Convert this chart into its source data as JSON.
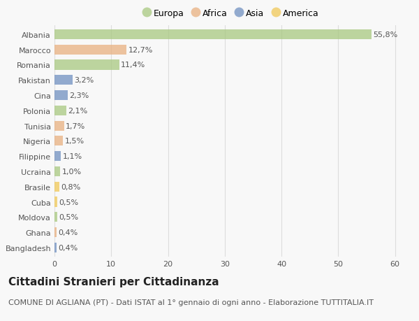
{
  "countries": [
    "Albania",
    "Marocco",
    "Romania",
    "Pakistan",
    "Cina",
    "Polonia",
    "Tunisia",
    "Nigeria",
    "Filippine",
    "Ucraina",
    "Brasile",
    "Cuba",
    "Moldova",
    "Ghana",
    "Bangladesh"
  ],
  "values": [
    55.8,
    12.7,
    11.4,
    3.2,
    2.3,
    2.1,
    1.7,
    1.5,
    1.1,
    1.0,
    0.8,
    0.5,
    0.5,
    0.4,
    0.4
  ],
  "labels": [
    "55,8%",
    "12,7%",
    "11,4%",
    "3,2%",
    "2,3%",
    "2,1%",
    "1,7%",
    "1,5%",
    "1,1%",
    "1,0%",
    "0,8%",
    "0,5%",
    "0,5%",
    "0,4%",
    "0,4%"
  ],
  "continents": [
    "Europa",
    "Africa",
    "Europa",
    "Asia",
    "Asia",
    "Europa",
    "Africa",
    "Africa",
    "Asia",
    "Europa",
    "America",
    "America",
    "Europa",
    "Africa",
    "Asia"
  ],
  "continent_colors": {
    "Europa": "#a8c880",
    "Africa": "#e8b080",
    "Asia": "#7090c0",
    "America": "#f0c858"
  },
  "bar_alpha": 0.75,
  "legend_items": [
    "Europa",
    "Africa",
    "Asia",
    "America"
  ],
  "legend_colors": [
    "#a8c880",
    "#e8b080",
    "#7090c0",
    "#f0c858"
  ],
  "xlim": [
    0,
    62
  ],
  "xticks": [
    0,
    10,
    20,
    30,
    40,
    50,
    60
  ],
  "title": "Cittadini Stranieri per Cittadinanza",
  "subtitle": "COMUNE DI AGLIANA (PT) - Dati ISTAT al 1° gennaio di ogni anno - Elaborazione TUTTITALIA.IT",
  "background_color": "#f8f8f8",
  "grid_color": "#dddddd",
  "title_fontsize": 11,
  "subtitle_fontsize": 8,
  "label_fontsize": 8,
  "tick_fontsize": 8,
  "bar_height": 0.65
}
